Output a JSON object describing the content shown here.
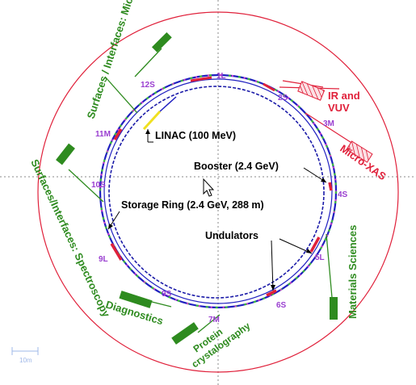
{
  "colors": {
    "outer_ring": "#e0203a",
    "storage_ring": "#2020c0",
    "booster": "#1a1aa8",
    "beamline": "#2e8b1f",
    "section_label": "#9a3fd0",
    "linac": "#f0e020",
    "highlight": "#e0203a"
  },
  "components": {
    "linac": "LINAC (100 MeV)",
    "booster": "Booster (2.4 GeV)",
    "storage_ring": "Storage Ring (2.4 GeV, 288 m)",
    "undulators": "Undulators"
  },
  "beamlines": {
    "surfaces_microscopy": "Surfaces / Interfaces: Microscopy",
    "surfaces_spectroscopy": "Surfaces/Interfaces: Spectroscopy",
    "ir_vuv_line1": "IR and",
    "ir_vuv_line2": "VUV",
    "micro_xas": "Micro-XAS",
    "materials_sciences": "Materials Sciences",
    "diagnostics": "Diagnostics",
    "protein_line1": "Protein",
    "protein_line2": "crystalography"
  },
  "sections": {
    "s1L": "1L",
    "s2S": "2S",
    "s3M": "3M",
    "s4S": "4S",
    "s5L": "5L",
    "s6S": "6S",
    "s7M": "7M",
    "s9S": "9S",
    "s9L": "9L",
    "s10S": "10S",
    "s11M": "11M",
    "s12S": "12S"
  },
  "scale": {
    "label": "10m"
  }
}
